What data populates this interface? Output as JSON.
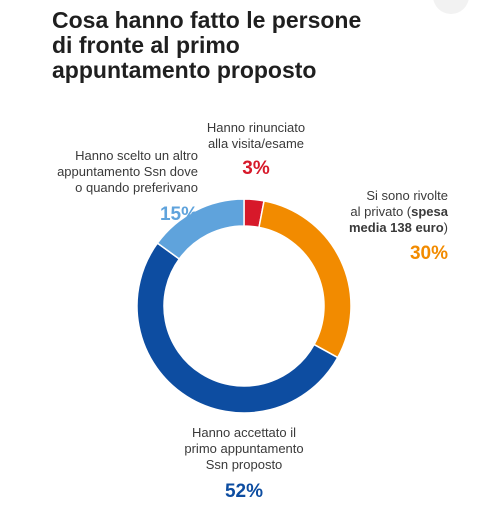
{
  "title": "Cosa hanno fatto le persone\ndi fronte al primo\nappuntamento proposto",
  "chart_data": {
    "type": "pie",
    "style": "donut",
    "slices": [
      {
        "label": "Hanno rinunciato\nalla visita/esame",
        "value": 3,
        "value_label": "3%",
        "color": "#d7192a"
      },
      {
        "label_pre": "Si sono rivolte\nal privato (",
        "label_bold": "spesa\nmedia 138 euro",
        "label_post": ")",
        "value": 30,
        "value_label": "30%",
        "color": "#f28b00"
      },
      {
        "label": "Hanno accettato il\nprimo appuntamento\nSsn proposto",
        "value": 52,
        "value_label": "52%",
        "color": "#0d4da1"
      },
      {
        "label": "Hanno scelto un altro\nappuntamento Ssn dove\no quando preferivano",
        "value": 15,
        "value_label": "15%",
        "color": "#5fa3dc"
      }
    ]
  }
}
